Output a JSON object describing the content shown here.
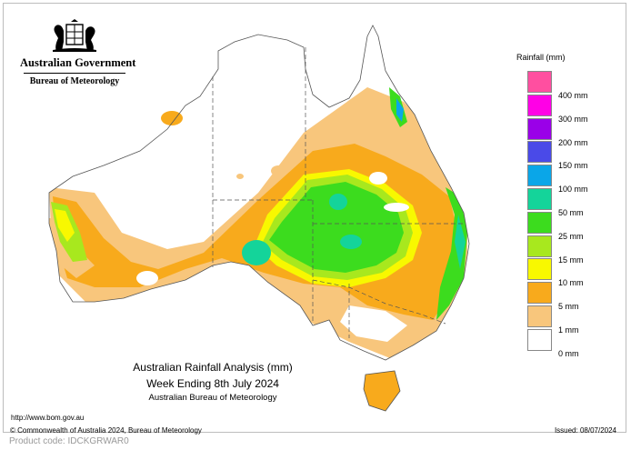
{
  "header": {
    "government_name": "Australian Government",
    "bureau_name": "Bureau of Meteorology",
    "coat_of_arms_icon": "coat-of-arms-icon"
  },
  "legend": {
    "title": "Rainfall (mm)",
    "bins": [
      {
        "label": "400 mm",
        "color": "#ff4fa0"
      },
      {
        "label": "300 mm",
        "color": "#ff00e6"
      },
      {
        "label": "200 mm",
        "color": "#9a00e8"
      },
      {
        "label": "150 mm",
        "color": "#4a4ae8"
      },
      {
        "label": "100 mm",
        "color": "#0aa6e8"
      },
      {
        "label": "50 mm",
        "color": "#14d49a"
      },
      {
        "label": "25 mm",
        "color": "#3cdc1e"
      },
      {
        "label": "15 mm",
        "color": "#a8e81e"
      },
      {
        "label": "10 mm",
        "color": "#f8f800"
      },
      {
        "label": "5 mm",
        "color": "#f8aa1c"
      },
      {
        "label": "1 mm",
        "color": "#f8c67c"
      },
      {
        "label": "0 mm",
        "color": "#ffffff"
      }
    ]
  },
  "caption": {
    "line1": "Australian Rainfall Analysis (mm)",
    "line2": "Week Ending 8th July 2024",
    "line3": "Australian Bureau of Meteorology"
  },
  "footer": {
    "url": "http://www.bom.gov.au",
    "copyright": "© Commonwealth of Australia 2024, Bureau of Meteorology",
    "issued": "Issued: 08/07/2024",
    "product_code": "Product code: IDCKGRWAR0"
  }
}
